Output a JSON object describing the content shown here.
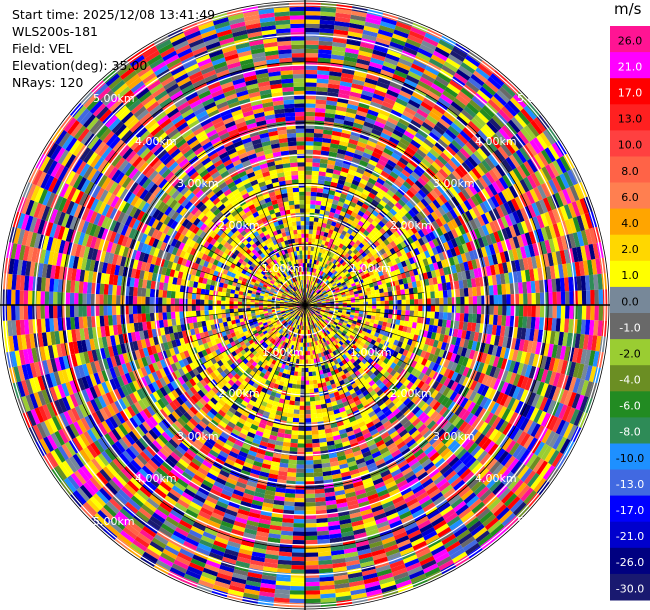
{
  "header": {
    "start_time": "Start time: 2025/12/08 13:41:49",
    "instrument": "WLS200s-181",
    "field": "Field: VEL",
    "elevation": "Elevation(deg): 35.00",
    "nrays": "NRays: 120"
  },
  "ring_labels": {
    "r1": "1.00km",
    "r2": "2.00km",
    "r3": "3.00km",
    "r4": "4.00km",
    "r5": "5.00km"
  },
  "colorbar": {
    "unit": "m/s",
    "ticks": [
      "26.0",
      "21.0",
      "17.0",
      "13.0",
      "10.0",
      "8.0",
      "6.0",
      "4.0",
      "2.0",
      "1.0",
      "0.0",
      "-1.0",
      "-2.0",
      "-4.0",
      "-6.0",
      "-8.0",
      "-10.0",
      "-13.0",
      "-17.0",
      "-21.0",
      "-26.0",
      "-30.0"
    ],
    "colors": [
      "#ff1493",
      "#ff00ff",
      "#ff0000",
      "#ff2020",
      "#ff4040",
      "#ff6347",
      "#ff7f50",
      "#ffa500",
      "#ffd700",
      "#ffff00",
      "#778899",
      "#696969",
      "#9acd32",
      "#6b8e23",
      "#228b22",
      "#2e8b57",
      "#1e90ff",
      "#4169e1",
      "#0000ff",
      "#0000cd",
      "#000080",
      "#191970"
    ]
  },
  "chart_data": {
    "type": "heatmap",
    "projection": "polar (PPI)",
    "field": "VEL",
    "units": "m/s",
    "n_rays": 120,
    "elevation_deg": 35.0,
    "range_rings_km": [
      1,
      2,
      3,
      4,
      5
    ],
    "value_range": [
      -30.0,
      26.0
    ]
  }
}
